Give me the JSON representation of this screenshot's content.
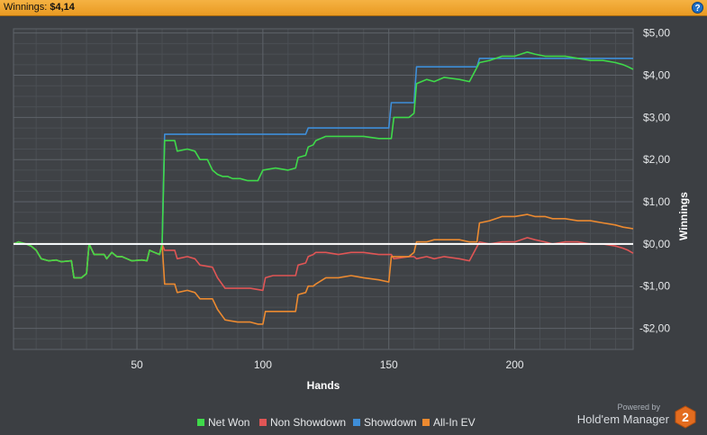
{
  "header": {
    "label": "Winnings:",
    "value": "$4,14",
    "help": "?"
  },
  "logo": {
    "powered": "Powered by",
    "name": "Hold'em Manager",
    "badge": "2"
  },
  "colors": {
    "background": "#3c3f43",
    "net_won": "#3fd94a",
    "non_showdown": "#e05555",
    "showdown": "#3e8ed8",
    "all_in_ev": "#ec8a30",
    "zero_line": "#ffffff"
  },
  "chart_data": {
    "type": "line",
    "xlabel": "Hands",
    "ylabel": "Winnings",
    "xlim": [
      1,
      247
    ],
    "ylim": [
      -2.5,
      5.1
    ],
    "xticks": [
      50,
      100,
      150,
      200
    ],
    "yticks": [
      {
        "value": 5,
        "label": "$5,00"
      },
      {
        "value": 4,
        "label": "$4,00"
      },
      {
        "value": 3,
        "label": "$3,00"
      },
      {
        "value": 2,
        "label": "$2,00"
      },
      {
        "value": 1,
        "label": "$1,00"
      },
      {
        "value": 0,
        "label": "$0,00"
      },
      {
        "value": -1,
        "label": "-$1,00"
      },
      {
        "value": -2,
        "label": "-$2,00"
      }
    ],
    "legend_position": "bottom",
    "grid": true,
    "series": [
      {
        "name": "Net Won",
        "color": "#3fd94a",
        "points": [
          [
            1,
            0
          ],
          [
            3,
            0.05
          ],
          [
            6,
            0
          ],
          [
            8,
            -0.05
          ],
          [
            10,
            -0.15
          ],
          [
            12,
            -0.35
          ],
          [
            15,
            -0.4
          ],
          [
            18,
            -0.38
          ],
          [
            20,
            -0.42
          ],
          [
            24,
            -0.4
          ],
          [
            25,
            -0.8
          ],
          [
            28,
            -0.8
          ],
          [
            30,
            -0.7
          ],
          [
            31,
            0.0
          ],
          [
            33,
            -0.25
          ],
          [
            37,
            -0.25
          ],
          [
            38,
            -0.35
          ],
          [
            40,
            -0.2
          ],
          [
            42,
            -0.3
          ],
          [
            44,
            -0.3
          ],
          [
            46,
            -0.35
          ],
          [
            48,
            -0.4
          ],
          [
            52,
            -0.38
          ],
          [
            54,
            -0.4
          ],
          [
            55,
            -0.15
          ],
          [
            57,
            -0.2
          ],
          [
            59,
            -0.25
          ],
          [
            60,
            0.0
          ],
          [
            61,
            2.45
          ],
          [
            65,
            2.45
          ],
          [
            66,
            2.2
          ],
          [
            70,
            2.25
          ],
          [
            73,
            2.2
          ],
          [
            75,
            2.0
          ],
          [
            78,
            2.0
          ],
          [
            80,
            1.75
          ],
          [
            82,
            1.65
          ],
          [
            84,
            1.6
          ],
          [
            86,
            1.6
          ],
          [
            88,
            1.55
          ],
          [
            91,
            1.55
          ],
          [
            94,
            1.5
          ],
          [
            98,
            1.5
          ],
          [
            100,
            1.75
          ],
          [
            105,
            1.8
          ],
          [
            110,
            1.75
          ],
          [
            113,
            1.8
          ],
          [
            114,
            2.05
          ],
          [
            117,
            2.1
          ],
          [
            118,
            2.3
          ],
          [
            120,
            2.35
          ],
          [
            121,
            2.45
          ],
          [
            125,
            2.55
          ],
          [
            140,
            2.55
          ],
          [
            146,
            2.5
          ],
          [
            151,
            2.5
          ],
          [
            152,
            3.0
          ],
          [
            158,
            3.0
          ],
          [
            160,
            3.1
          ],
          [
            161,
            3.8
          ],
          [
            165,
            3.9
          ],
          [
            168,
            3.85
          ],
          [
            172,
            3.95
          ],
          [
            178,
            3.9
          ],
          [
            182,
            3.85
          ],
          [
            186,
            4.3
          ],
          [
            190,
            4.35
          ],
          [
            195,
            4.45
          ],
          [
            200,
            4.45
          ],
          [
            205,
            4.55
          ],
          [
            208,
            4.5
          ],
          [
            212,
            4.45
          ],
          [
            215,
            4.45
          ],
          [
            220,
            4.45
          ],
          [
            225,
            4.4
          ],
          [
            230,
            4.35
          ],
          [
            235,
            4.35
          ],
          [
            240,
            4.3
          ],
          [
            243,
            4.25
          ],
          [
            245,
            4.2
          ],
          [
            247,
            4.14
          ]
        ]
      },
      {
        "name": "Non Showdown",
        "color": "#e05555",
        "points": [
          [
            1,
            0
          ],
          [
            3,
            0.05
          ],
          [
            6,
            0
          ],
          [
            8,
            -0.05
          ],
          [
            10,
            -0.15
          ],
          [
            12,
            -0.35
          ],
          [
            15,
            -0.4
          ],
          [
            18,
            -0.38
          ],
          [
            20,
            -0.42
          ],
          [
            24,
            -0.4
          ],
          [
            25,
            -0.8
          ],
          [
            28,
            -0.8
          ],
          [
            30,
            -0.7
          ],
          [
            31,
            0.0
          ],
          [
            33,
            -0.25
          ],
          [
            37,
            -0.25
          ],
          [
            38,
            -0.35
          ],
          [
            40,
            -0.2
          ],
          [
            42,
            -0.3
          ],
          [
            44,
            -0.3
          ],
          [
            46,
            -0.35
          ],
          [
            48,
            -0.4
          ],
          [
            52,
            -0.38
          ],
          [
            54,
            -0.4
          ],
          [
            55,
            -0.15
          ],
          [
            57,
            -0.2
          ],
          [
            59,
            -0.25
          ],
          [
            60,
            0.0
          ],
          [
            61,
            -0.15
          ],
          [
            65,
            -0.15
          ],
          [
            66,
            -0.35
          ],
          [
            70,
            -0.3
          ],
          [
            73,
            -0.35
          ],
          [
            75,
            -0.5
          ],
          [
            80,
            -0.55
          ],
          [
            82,
            -0.8
          ],
          [
            85,
            -1.05
          ],
          [
            90,
            -1.05
          ],
          [
            95,
            -1.05
          ],
          [
            100,
            -1.1
          ],
          [
            101,
            -0.8
          ],
          [
            104,
            -0.75
          ],
          [
            110,
            -0.75
          ],
          [
            113,
            -0.75
          ],
          [
            114,
            -0.5
          ],
          [
            117,
            -0.45
          ],
          [
            118,
            -0.3
          ],
          [
            120,
            -0.25
          ],
          [
            121,
            -0.2
          ],
          [
            125,
            -0.2
          ],
          [
            130,
            -0.25
          ],
          [
            135,
            -0.2
          ],
          [
            140,
            -0.2
          ],
          [
            146,
            -0.25
          ],
          [
            151,
            -0.25
          ],
          [
            152,
            -0.35
          ],
          [
            158,
            -0.3
          ],
          [
            160,
            -0.3
          ],
          [
            161,
            -0.35
          ],
          [
            165,
            -0.3
          ],
          [
            168,
            -0.35
          ],
          [
            172,
            -0.3
          ],
          [
            178,
            -0.35
          ],
          [
            182,
            -0.4
          ],
          [
            186,
            0.05
          ],
          [
            190,
            0.0
          ],
          [
            195,
            0.05
          ],
          [
            200,
            0.05
          ],
          [
            205,
            0.15
          ],
          [
            208,
            0.1
          ],
          [
            212,
            0.05
          ],
          [
            215,
            0.0
          ],
          [
            220,
            0.05
          ],
          [
            225,
            0.05
          ],
          [
            230,
            0.0
          ],
          [
            235,
            0.0
          ],
          [
            240,
            -0.05
          ],
          [
            243,
            -0.1
          ],
          [
            245,
            -0.15
          ],
          [
            247,
            -0.22
          ]
        ]
      },
      {
        "name": "Showdown",
        "color": "#3e8ed8",
        "points": [
          [
            1,
            0
          ],
          [
            60,
            0
          ],
          [
            61,
            2.6
          ],
          [
            117,
            2.6
          ],
          [
            118,
            2.75
          ],
          [
            150,
            2.75
          ],
          [
            151,
            3.35
          ],
          [
            160,
            3.35
          ],
          [
            161,
            4.2
          ],
          [
            185,
            4.2
          ],
          [
            186,
            4.4
          ],
          [
            247,
            4.4
          ]
        ]
      },
      {
        "name": "All-In EV",
        "color": "#ec8a30",
        "points": [
          [
            1,
            0
          ],
          [
            3,
            0.05
          ],
          [
            6,
            0
          ],
          [
            8,
            -0.05
          ],
          [
            10,
            -0.15
          ],
          [
            12,
            -0.35
          ],
          [
            15,
            -0.4
          ],
          [
            18,
            -0.38
          ],
          [
            20,
            -0.42
          ],
          [
            24,
            -0.4
          ],
          [
            25,
            -0.8
          ],
          [
            28,
            -0.8
          ],
          [
            30,
            -0.7
          ],
          [
            31,
            0.0
          ],
          [
            33,
            -0.25
          ],
          [
            37,
            -0.25
          ],
          [
            38,
            -0.35
          ],
          [
            40,
            -0.2
          ],
          [
            42,
            -0.3
          ],
          [
            44,
            -0.3
          ],
          [
            46,
            -0.35
          ],
          [
            48,
            -0.4
          ],
          [
            52,
            -0.38
          ],
          [
            54,
            -0.4
          ],
          [
            55,
            -0.15
          ],
          [
            57,
            -0.2
          ],
          [
            59,
            -0.25
          ],
          [
            60,
            0.0
          ],
          [
            61,
            -0.95
          ],
          [
            65,
            -0.95
          ],
          [
            66,
            -1.15
          ],
          [
            70,
            -1.1
          ],
          [
            73,
            -1.15
          ],
          [
            75,
            -1.3
          ],
          [
            80,
            -1.3
          ],
          [
            82,
            -1.55
          ],
          [
            85,
            -1.8
          ],
          [
            90,
            -1.85
          ],
          [
            95,
            -1.85
          ],
          [
            98,
            -1.9
          ],
          [
            100,
            -1.9
          ],
          [
            101,
            -1.6
          ],
          [
            104,
            -1.6
          ],
          [
            110,
            -1.6
          ],
          [
            113,
            -1.6
          ],
          [
            114,
            -1.2
          ],
          [
            117,
            -1.15
          ],
          [
            118,
            -1.0
          ],
          [
            120,
            -1.0
          ],
          [
            121,
            -0.95
          ],
          [
            125,
            -0.8
          ],
          [
            130,
            -0.8
          ],
          [
            135,
            -0.75
          ],
          [
            140,
            -0.8
          ],
          [
            146,
            -0.85
          ],
          [
            150,
            -0.9
          ],
          [
            151,
            -0.3
          ],
          [
            158,
            -0.3
          ],
          [
            160,
            -0.2
          ],
          [
            161,
            0.05
          ],
          [
            165,
            0.05
          ],
          [
            168,
            0.1
          ],
          [
            172,
            0.1
          ],
          [
            178,
            0.1
          ],
          [
            182,
            0.05
          ],
          [
            185,
            0.05
          ],
          [
            186,
            0.5
          ],
          [
            190,
            0.55
          ],
          [
            195,
            0.65
          ],
          [
            200,
            0.65
          ],
          [
            205,
            0.7
          ],
          [
            208,
            0.65
          ],
          [
            212,
            0.65
          ],
          [
            215,
            0.6
          ],
          [
            220,
            0.6
          ],
          [
            225,
            0.55
          ],
          [
            230,
            0.55
          ],
          [
            235,
            0.5
          ],
          [
            240,
            0.45
          ],
          [
            243,
            0.4
          ],
          [
            245,
            0.38
          ],
          [
            247,
            0.36
          ]
        ]
      }
    ]
  }
}
